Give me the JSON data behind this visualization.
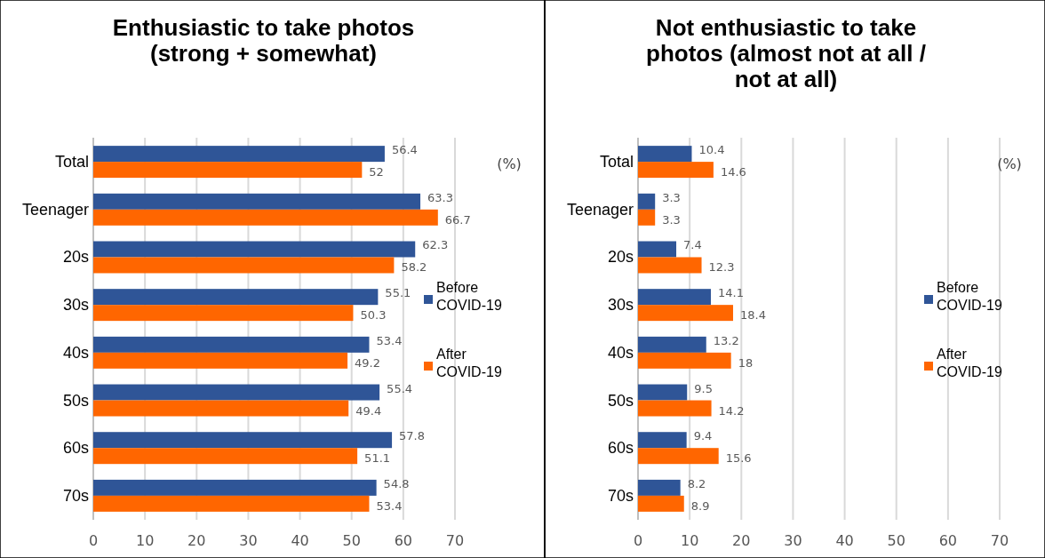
{
  "chart_data": [
    {
      "type": "bar",
      "orientation": "horizontal",
      "title": "Enthusiastic to take photos\n(strong + somewhat)",
      "categories": [
        "Total",
        "Teenager",
        "20s",
        "30s",
        "40s",
        "50s",
        "60s",
        "70s"
      ],
      "series": [
        {
          "name": "Before\nCOVID-19",
          "color": "#2f5597",
          "values": [
            56.4,
            63.3,
            62.3,
            55.1,
            53.4,
            55.4,
            57.8,
            54.8
          ]
        },
        {
          "name": "After\nCOVID-19",
          "color": "#ff6600",
          "values": [
            52,
            66.7,
            58.2,
            50.3,
            49.2,
            49.4,
            51.1,
            53.4
          ]
        }
      ],
      "xlim": [
        0,
        70
      ],
      "xticks": [
        0,
        10,
        20,
        30,
        40,
        50,
        60,
        70
      ],
      "grid": "x",
      "legend": "right",
      "data_labels": true,
      "annotations": [
        "(%)"
      ]
    },
    {
      "type": "bar",
      "orientation": "horizontal",
      "title": "Not enthusiastic to take\nphotos (almost not at all /\nnot at all)",
      "categories": [
        "Total",
        "Teenager",
        "20s",
        "30s",
        "40s",
        "50s",
        "60s",
        "70s"
      ],
      "series": [
        {
          "name": "Before\nCOVID-19",
          "color": "#2f5597",
          "values": [
            10.4,
            3.3,
            7.4,
            14.1,
            13.2,
            9.5,
            9.4,
            8.2
          ]
        },
        {
          "name": "After\nCOVID-19",
          "color": "#ff6600",
          "values": [
            14.6,
            3.3,
            12.3,
            18.4,
            18,
            14.2,
            15.6,
            8.9
          ]
        }
      ],
      "xlim": [
        0,
        70
      ],
      "xticks": [
        0,
        10,
        20,
        30,
        40,
        50,
        60,
        70
      ],
      "grid": "x",
      "legend": "right",
      "data_labels": true,
      "annotations": [
        "(%)"
      ]
    }
  ]
}
